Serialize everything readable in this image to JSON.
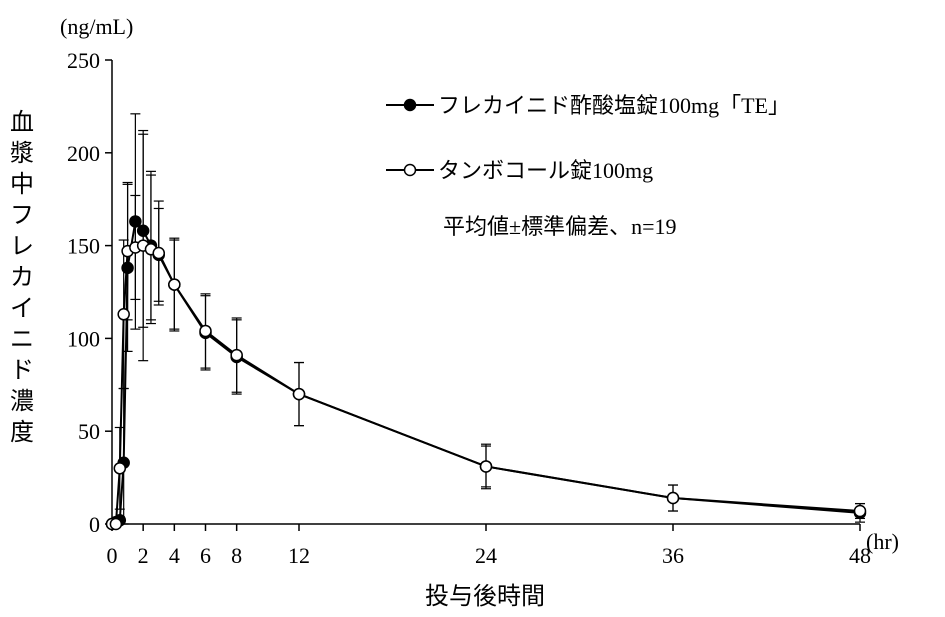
{
  "chart_data": {
    "type": "line",
    "title": "",
    "ylabel": "血漿中フレカイニド濃度",
    "yunit": "(ng/mL)",
    "xlabel": "投与後時間",
    "xunit": "(hr)",
    "ylim": [
      0,
      250
    ],
    "xlim": [
      0,
      48
    ],
    "yticks": [
      0,
      50,
      100,
      150,
      200,
      250
    ],
    "xticks": [
      0,
      2,
      4,
      6,
      8,
      12,
      24,
      36,
      48
    ],
    "grid": false,
    "legend_position": "top-right",
    "note": "平均値±標準偏差、n=19",
    "series": [
      {
        "name": "フレカイニド酢酸塩錠100mg「TE」",
        "marker": "filled-circle",
        "color": "#000000",
        "x": [
          0,
          0.25,
          0.5,
          0.75,
          1,
          1.5,
          2,
          2.5,
          3,
          4,
          6,
          8,
          12,
          24,
          36,
          48
        ],
        "y": [
          0,
          1,
          2,
          33,
          138,
          163,
          158,
          150,
          145,
          129,
          103,
          90,
          70,
          31,
          14,
          6
        ],
        "sd": [
          0,
          1,
          2,
          40,
          45,
          58,
          52,
          40,
          25,
          24,
          20,
          20,
          17,
          11,
          7,
          5
        ]
      },
      {
        "name": "タンボコール錠100mg",
        "marker": "open-circle",
        "color": "#000000",
        "x": [
          0,
          0.25,
          0.5,
          0.75,
          1,
          1.5,
          2,
          2.5,
          3,
          4,
          6,
          8,
          12,
          24,
          36,
          48
        ],
        "y": [
          0,
          0,
          30,
          113,
          147,
          149,
          150,
          148,
          146,
          129,
          104,
          91,
          70,
          31,
          14,
          7
        ],
        "sd": [
          0,
          0,
          22,
          40,
          37,
          28,
          62,
          40,
          28,
          25,
          20,
          20,
          17,
          12,
          7,
          4
        ]
      }
    ]
  }
}
